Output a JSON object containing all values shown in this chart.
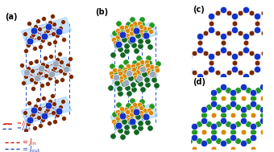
{
  "bg_color": "#ffffff",
  "panel_labels": [
    "(a)",
    "(b)",
    "(c)",
    "(d)"
  ],
  "jin_color": "#cc1100",
  "jout_color": "#2244bb",
  "cr_blue": "#1133cc",
  "cr_ghost": "#99aabb",
  "br_brown": "#7a2800",
  "ge_orange": "#dd8800",
  "te_green": "#229922",
  "te_dark_green": "#116622",
  "plane_color": "#99ccff",
  "bond_color": "#999999",
  "plane_alpha": 0.55
}
